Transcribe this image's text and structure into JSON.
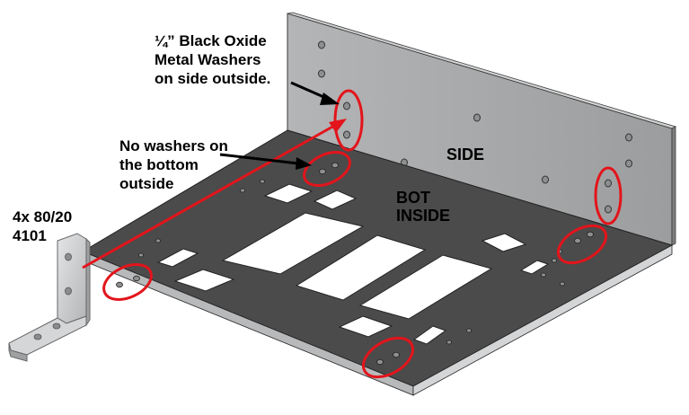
{
  "labels": {
    "washers_side": [
      "¼” Black Oxide",
      "Metal Washers",
      "on side outside."
    ],
    "no_washers_bottom": [
      "No washers on",
      "the bottom",
      "outside"
    ],
    "part_number": [
      "4x 80/20",
      "4101"
    ],
    "side": "SIDE",
    "bot_inside": [
      "BOT",
      "INSIDE"
    ]
  },
  "colors": {
    "highlight": "#e3141b",
    "side_panel": "#a9aaab",
    "bottom_panel": "#4c4c4c",
    "bracket": "#c9cbcd"
  },
  "icons": {
    "arrow": "black-arrow",
    "highlight": "red-ellipse"
  }
}
